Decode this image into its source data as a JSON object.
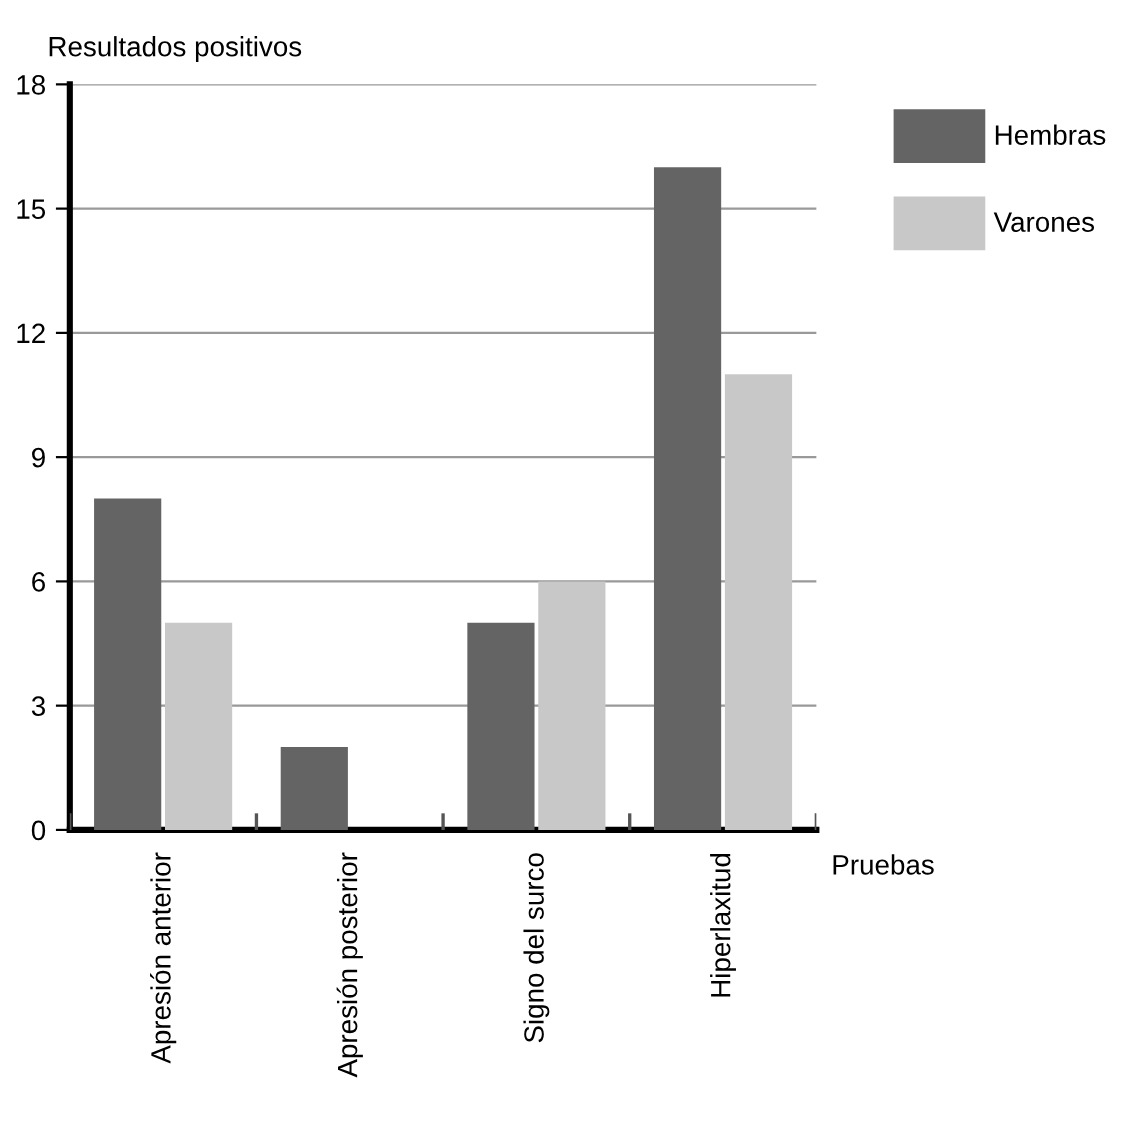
{
  "chart_data": {
    "type": "bar",
    "ylabel": "Resultados positivos",
    "xlabel": "Pruebas",
    "categories": [
      "Apresión anterior",
      "Apresión posterior",
      "Signo del surco",
      "Hiperlaxitud"
    ],
    "series": [
      {
        "name": "Hembras",
        "color": "#646464",
        "values": [
          8,
          2,
          5,
          16
        ]
      },
      {
        "name": "Varones",
        "color": "#c8c8c8",
        "values": [
          5,
          0,
          6,
          11
        ]
      }
    ],
    "ylim": [
      0,
      18
    ],
    "yticks": [
      0,
      3,
      6,
      9,
      12,
      15,
      18
    ],
    "grid": "y",
    "legend": "top right"
  }
}
